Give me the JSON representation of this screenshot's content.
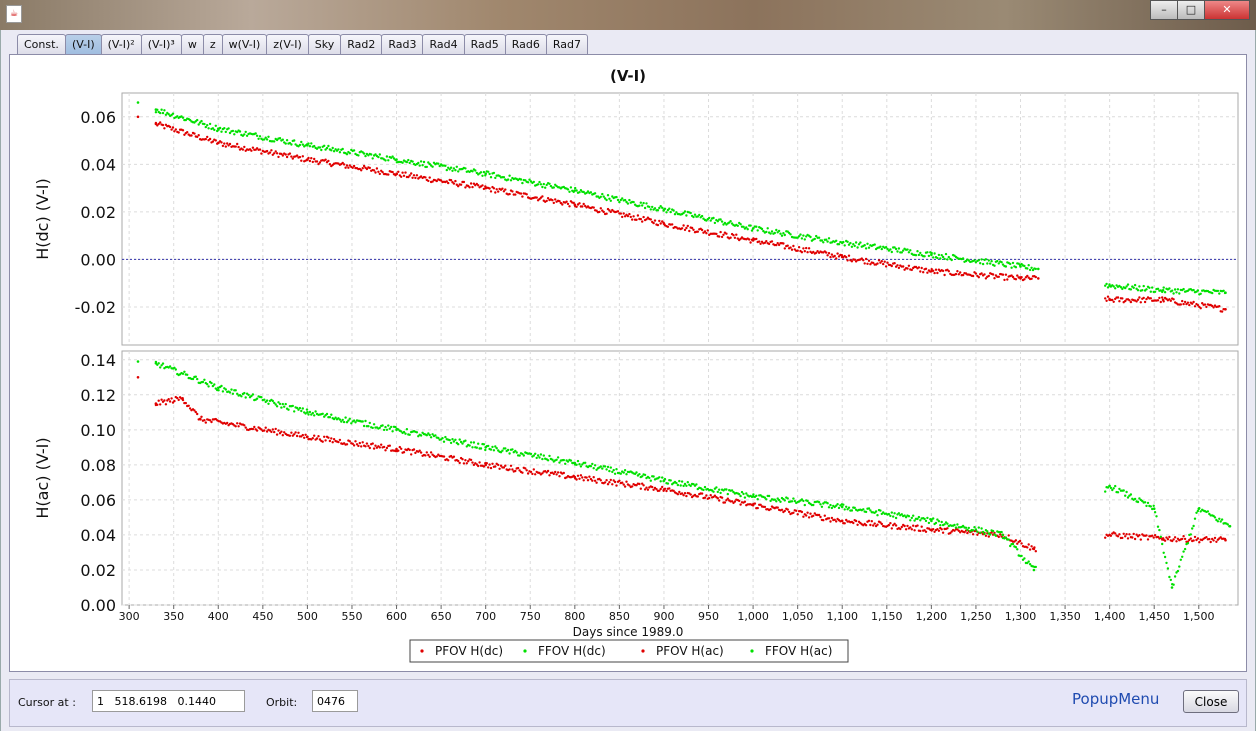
{
  "window": {
    "icon": "java-cup-icon"
  },
  "tabs": [
    "Const.",
    "(V-I)",
    "(V-I)²",
    "(V-I)³",
    "w",
    "z",
    "w(V-I)",
    "z(V-I)",
    "Sky",
    "Rad2",
    "Rad3",
    "Rad4",
    "Rad5",
    "Rad6",
    "Rad7"
  ],
  "active_tab": 1,
  "chart_data": [
    {
      "type": "scatter",
      "title": "(V-I)",
      "xlabel": "Days since 1989.0",
      "ylabel": "H(dc) (V-I)",
      "xlim": [
        292,
        1544
      ],
      "ylim": [
        -0.036,
        0.07
      ],
      "yticks": [
        "0.06",
        "0.04",
        "0.02",
        "0.00",
        "-0.02"
      ],
      "reference_line_y": 0,
      "series": [
        {
          "name": "PFOV H(dc)",
          "color": "#e00000",
          "points": [
            [
              310,
              0.06
            ],
            [
              330,
              0.057
            ],
            [
              400,
              0.049
            ],
            [
              500,
              0.042
            ],
            [
              600,
              0.036
            ],
            [
              700,
              0.03
            ],
            [
              800,
              0.023
            ],
            [
              900,
              0.015
            ],
            [
              1000,
              0.008
            ],
            [
              1100,
              0.001
            ],
            [
              1200,
              -0.005
            ],
            [
              1300,
              -0.008
            ],
            [
              1320,
              -0.008
            ],
            [
              1400,
              -0.017
            ],
            [
              1460,
              -0.017
            ],
            [
              1530,
              -0.021
            ]
          ]
        },
        {
          "name": "FFOV H(dc)",
          "color": "#00e000",
          "points": [
            [
              310,
              0.066
            ],
            [
              330,
              0.063
            ],
            [
              400,
              0.055
            ],
            [
              500,
              0.048
            ],
            [
              600,
              0.042
            ],
            [
              700,
              0.036
            ],
            [
              800,
              0.029
            ],
            [
              900,
              0.021
            ],
            [
              1000,
              0.013
            ],
            [
              1100,
              0.007
            ],
            [
              1200,
              0.002
            ],
            [
              1300,
              -0.003
            ],
            [
              1320,
              -0.004
            ],
            [
              1400,
              -0.011
            ],
            [
              1460,
              -0.013
            ],
            [
              1530,
              -0.014
            ]
          ]
        }
      ]
    },
    {
      "type": "scatter",
      "xlabel": "Days since 1989.0",
      "ylabel": "H(ac) (V-I)",
      "xlim": [
        292,
        1544
      ],
      "ylim": [
        0,
        0.145
      ],
      "yticks": [
        "0.14",
        "0.12",
        "0.10",
        "0.08",
        "0.06",
        "0.04",
        "0.02",
        "0.00"
      ],
      "xticks": [
        "300",
        "350",
        "400",
        "450",
        "500",
        "550",
        "600",
        "650",
        "700",
        "750",
        "800",
        "850",
        "900",
        "950",
        "1,000",
        "1,050",
        "1,100",
        "1,150",
        "1,200",
        "1,250",
        "1,300",
        "1,350",
        "1,400",
        "1,450",
        "1,500"
      ],
      "series": [
        {
          "name": "PFOV H(ac)",
          "color": "#e00000",
          "points": [
            [
              310,
              0.13
            ],
            [
              330,
              0.115
            ],
            [
              360,
              0.118
            ],
            [
              380,
              0.106
            ],
            [
              500,
              0.096
            ],
            [
              600,
              0.089
            ],
            [
              700,
              0.08
            ],
            [
              800,
              0.073
            ],
            [
              900,
              0.066
            ],
            [
              1000,
              0.057
            ],
            [
              1100,
              0.048
            ],
            [
              1200,
              0.043
            ],
            [
              1280,
              0.04
            ],
            [
              1315,
              0.032
            ],
            [
              1400,
              0.04
            ],
            [
              1460,
              0.038
            ],
            [
              1530,
              0.037
            ]
          ]
        },
        {
          "name": "FFOV H(ac)",
          "color": "#00e000",
          "points": [
            [
              310,
              0.139
            ],
            [
              330,
              0.138
            ],
            [
              400,
              0.124
            ],
            [
              500,
              0.11
            ],
            [
              600,
              0.1
            ],
            [
              700,
              0.09
            ],
            [
              800,
              0.081
            ],
            [
              900,
              0.071
            ],
            [
              1000,
              0.062
            ],
            [
              1100,
              0.056
            ],
            [
              1200,
              0.048
            ],
            [
              1280,
              0.04
            ],
            [
              1315,
              0.02
            ],
            [
              1400,
              0.068
            ],
            [
              1450,
              0.055
            ],
            [
              1470,
              0.01
            ],
            [
              1500,
              0.055
            ],
            [
              1535,
              0.045
            ]
          ]
        }
      ]
    }
  ],
  "legend": [
    {
      "label": "PFOV H(dc)",
      "color": "#e00000"
    },
    {
      "label": "FFOV H(dc)",
      "color": "#00e000"
    },
    {
      "label": "PFOV H(ac)",
      "color": "#e00000"
    },
    {
      "label": "FFOV H(ac)",
      "color": "#00e000"
    }
  ],
  "bottom": {
    "cursor_label": "Cursor at :",
    "cursor_value": "1   518.6198   0.1440",
    "orbit_label": "Orbit:",
    "orbit_value": "0476",
    "popup_label": "PopupMenu",
    "close_label": "Close"
  }
}
